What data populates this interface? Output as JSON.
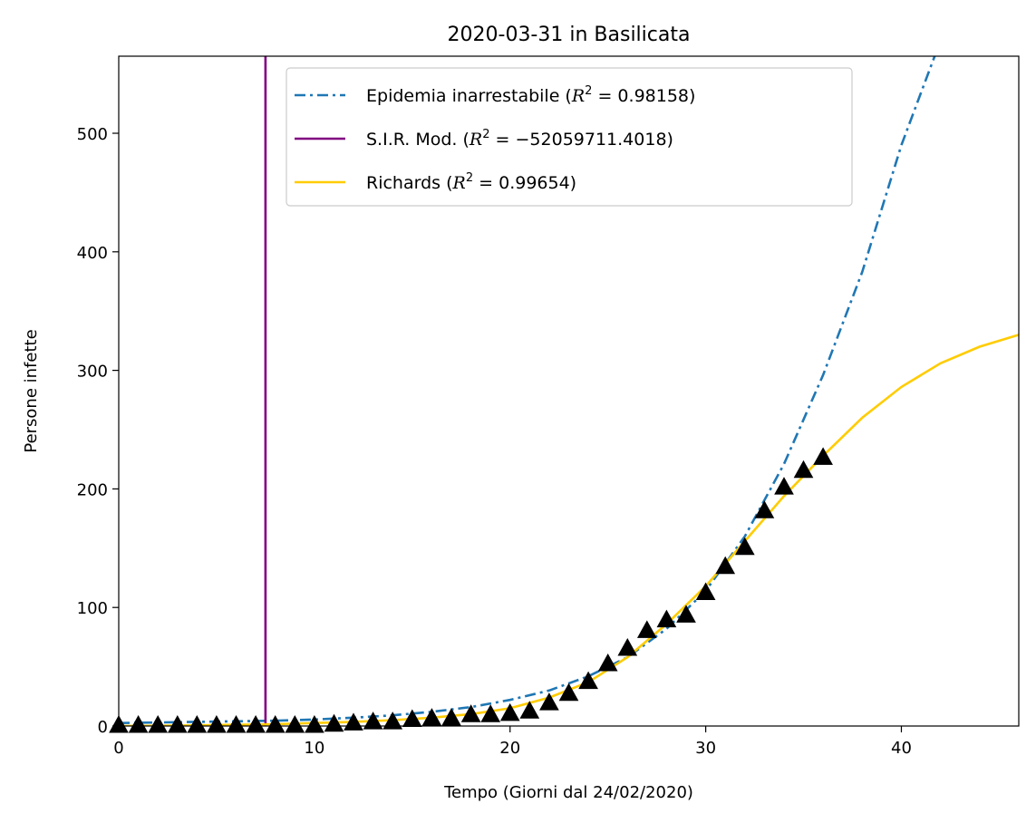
{
  "chart_data": {
    "type": "line",
    "title": "2020-03-31 in Basilicata",
    "xlabel": "Tempo (Giorni dal 24/02/2020)",
    "ylabel": "Persone infette",
    "xlim": [
      0,
      46
    ],
    "ylim": [
      0,
      565
    ],
    "x_ticks": [
      0,
      10,
      20,
      30,
      40
    ],
    "y_ticks": [
      0,
      100,
      200,
      300,
      400,
      500
    ],
    "grid": false,
    "legend_position": "top-center",
    "legend": [
      {
        "label": "Epidemia inarrestabile",
        "r2": "0.98158",
        "color": "#1f77b4",
        "style": "dashdot"
      },
      {
        "label": "S.I.R. Mod.",
        "r2": "−52059711.4018",
        "color": "#800080",
        "style": "solid"
      },
      {
        "label": "Richards",
        "r2": "0.99654",
        "color": "#ffcc00",
        "style": "solid"
      }
    ],
    "series": [
      {
        "name": "Epidemia inarrestabile",
        "color": "#1f77b4",
        "x": [
          0,
          2,
          4,
          6,
          8,
          10,
          12,
          14,
          16,
          18,
          20,
          22,
          24,
          26,
          28,
          30,
          32,
          34,
          36,
          38,
          40,
          41.7
        ],
        "y": [
          2.5,
          3,
          3.5,
          4,
          4.5,
          5.5,
          7,
          9,
          12,
          16,
          22,
          30,
          42,
          58,
          82,
          114,
          160,
          221,
          296,
          383,
          490,
          565
        ]
      },
      {
        "name": "S.I.R. Mod.",
        "color": "#800080",
        "x": [
          7.5,
          7.5
        ],
        "y": [
          0,
          565
        ]
      },
      {
        "name": "Richards",
        "color": "#ffcc00",
        "x": [
          0,
          4,
          8,
          10,
          12,
          14,
          16,
          18,
          20,
          22,
          24,
          26,
          28,
          30,
          32,
          34,
          36,
          38,
          40,
          42,
          44,
          46
        ],
        "y": [
          0,
          0.5,
          1.5,
          2.5,
          3.5,
          5,
          7,
          10,
          15,
          24,
          37,
          58,
          86,
          118,
          156,
          194,
          228,
          260,
          286,
          306,
          320,
          330
        ]
      }
    ],
    "observed": {
      "marker": "triangle",
      "color": "#000000",
      "x": [
        0,
        1,
        2,
        3,
        4,
        5,
        6,
        7,
        8,
        9,
        10,
        11,
        12,
        13,
        14,
        15,
        16,
        17,
        18,
        19,
        20,
        21,
        22,
        23,
        24,
        25,
        26,
        27,
        28,
        29,
        30,
        31,
        32,
        33,
        34,
        35,
        36
      ],
      "y": [
        0,
        0,
        0,
        0,
        0,
        0,
        0,
        0,
        0,
        0,
        0,
        1,
        2,
        3,
        3,
        5,
        6,
        6,
        9,
        9,
        10,
        12,
        19,
        27,
        37,
        52,
        65,
        80,
        89,
        93,
        112,
        134,
        150,
        181,
        201,
        215,
        226
      ]
    }
  }
}
